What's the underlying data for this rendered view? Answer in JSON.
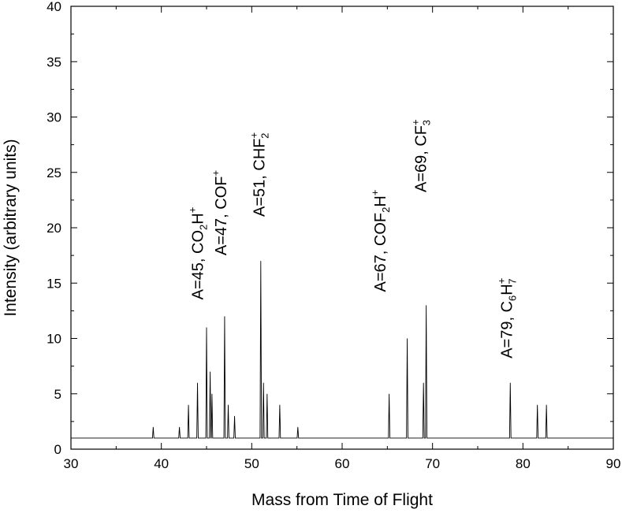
{
  "chart_data": {
    "type": "line",
    "title": "",
    "xlabel": "Mass from Time of Flight",
    "ylabel": "Intensity (arbitrary units)",
    "xlim": [
      30,
      90
    ],
    "ylim": [
      0,
      40
    ],
    "xticks": [
      "30",
      "40",
      "50",
      "60",
      "70",
      "80",
      "90"
    ],
    "yticks": [
      "0",
      "5",
      "10",
      "15",
      "20",
      "25",
      "30",
      "35",
      "40"
    ],
    "grid": false,
    "baseline": 1,
    "peaks": [
      {
        "x": 39.1,
        "y": 2
      },
      {
        "x": 42.0,
        "y": 2
      },
      {
        "x": 43.0,
        "y": 4
      },
      {
        "x": 44.0,
        "y": 6
      },
      {
        "x": 45.0,
        "y": 11
      },
      {
        "x": 45.4,
        "y": 7
      },
      {
        "x": 45.6,
        "y": 5
      },
      {
        "x": 47.0,
        "y": 12
      },
      {
        "x": 47.4,
        "y": 4
      },
      {
        "x": 48.1,
        "y": 3
      },
      {
        "x": 51.0,
        "y": 17
      },
      {
        "x": 51.3,
        "y": 6
      },
      {
        "x": 51.7,
        "y": 5
      },
      {
        "x": 53.1,
        "y": 4
      },
      {
        "x": 55.1,
        "y": 2
      },
      {
        "x": 65.2,
        "y": 5
      },
      {
        "x": 67.2,
        "y": 10
      },
      {
        "x": 69.0,
        "y": 6
      },
      {
        "x": 69.3,
        "y": 13
      },
      {
        "x": 78.6,
        "y": 6
      },
      {
        "x": 81.6,
        "y": 4
      },
      {
        "x": 82.6,
        "y": 4
      }
    ],
    "annotations": [
      {
        "x": 44.6,
        "y": 13.5,
        "main": "A=45, CO",
        "sub": "2",
        "tail": "H",
        "sup": "+",
        "tail2": "",
        "sub2": ""
      },
      {
        "x": 47.2,
        "y": 17.5,
        "main": "A=47, COF",
        "sub": "",
        "tail": "",
        "sup": "+",
        "tail2": "",
        "sub2": ""
      },
      {
        "x": 51.4,
        "y": 21.0,
        "main": "A=51, CHF",
        "sub": "",
        "tail": "",
        "sup": "+",
        "tail2": "",
        "sub2": "2"
      },
      {
        "x": 64.8,
        "y": 14.2,
        "main": "A=67, COF",
        "sub": "2",
        "tail": "H",
        "sup": "+",
        "tail2": "",
        "sub2": ""
      },
      {
        "x": 69.3,
        "y": 23.2,
        "main": "A=69, CF",
        "sub": "",
        "tail": "",
        "sup": "+",
        "tail2": "",
        "sub2": "3"
      },
      {
        "x": 78.8,
        "y": 8.2,
        "main": "A=79, C",
        "sub": "6",
        "tail": "H",
        "sup": "+",
        "tail2": "",
        "sub2": "7"
      }
    ]
  }
}
